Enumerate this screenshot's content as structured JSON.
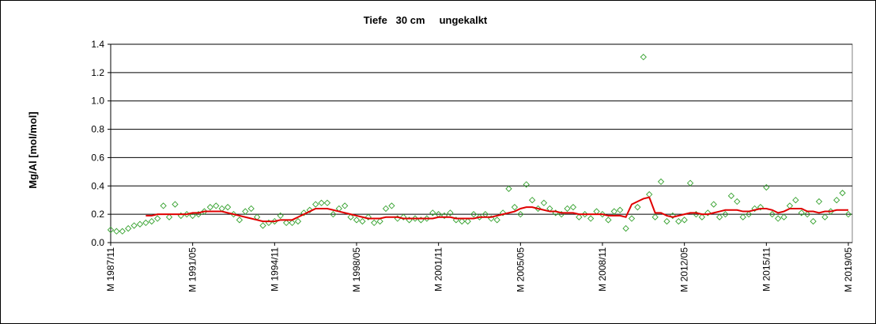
{
  "chart_data": {
    "type": "scatter",
    "title": "Tiefe   30 cm     ungekalkt",
    "y_label": "Mg/Al [mol/mol]",
    "categories": [
      "M 1987/11",
      null,
      null,
      null,
      null,
      null,
      null,
      null,
      null,
      null,
      null,
      null,
      null,
      null,
      "M 1991/05",
      null,
      null,
      null,
      null,
      null,
      null,
      null,
      null,
      null,
      null,
      null,
      null,
      null,
      "M 1994/11",
      null,
      null,
      null,
      null,
      null,
      null,
      null,
      null,
      null,
      null,
      null,
      null,
      null,
      "M 1998/05",
      null,
      null,
      null,
      null,
      null,
      null,
      null,
      null,
      null,
      null,
      null,
      null,
      null,
      "M 2001/11",
      null,
      null,
      null,
      null,
      null,
      null,
      null,
      null,
      null,
      null,
      null,
      null,
      null,
      "M 2005/05",
      null,
      null,
      null,
      null,
      null,
      null,
      null,
      null,
      null,
      null,
      null,
      null,
      null,
      "M 2008/11",
      null,
      null,
      null,
      null,
      null,
      null,
      null,
      null,
      null,
      null,
      null,
      null,
      null,
      "M 2012/05",
      null,
      null,
      null,
      null,
      null,
      null,
      null,
      null,
      null,
      null,
      null,
      null,
      null,
      "M 2015/11",
      null,
      null,
      null,
      null,
      null,
      null,
      null,
      null,
      null,
      null,
      null,
      null,
      null,
      "M 2019/05"
    ],
    "series": [
      {
        "style": "marker",
        "color": "#33a02c",
        "values": [
          0.09,
          0.08,
          0.08,
          0.1,
          0.12,
          0.13,
          0.14,
          0.15,
          0.17,
          0.26,
          0.18,
          0.27,
          0.19,
          0.2,
          0.19,
          0.2,
          0.22,
          0.25,
          0.26,
          0.24,
          0.25,
          0.2,
          0.16,
          0.22,
          0.24,
          0.18,
          0.12,
          0.14,
          0.15,
          0.19,
          0.14,
          0.14,
          0.15,
          0.21,
          0.23,
          0.27,
          0.28,
          0.28,
          0.2,
          0.24,
          0.26,
          0.18,
          0.16,
          0.15,
          0.18,
          0.14,
          0.15,
          0.24,
          0.26,
          0.17,
          0.18,
          0.16,
          0.17,
          0.16,
          0.17,
          0.21,
          0.2,
          0.19,
          0.21,
          0.16,
          0.15,
          0.15,
          0.2,
          0.18,
          0.2,
          0.17,
          0.16,
          0.21,
          0.38,
          0.25,
          0.2,
          0.41,
          0.3,
          0.24,
          0.28,
          0.24,
          0.21,
          0.2,
          0.24,
          0.25,
          0.18,
          0.2,
          0.17,
          0.22,
          0.2,
          0.16,
          0.22,
          0.23,
          0.1,
          0.17,
          0.25,
          1.31,
          0.34,
          0.18,
          0.43,
          0.15,
          0.19,
          0.15,
          0.16,
          0.42,
          0.2,
          0.18,
          0.21,
          0.27,
          0.18,
          0.2,
          0.33,
          0.29,
          0.18,
          0.2,
          0.24,
          0.25,
          0.39,
          0.2,
          0.17,
          0.18,
          0.26,
          0.3,
          0.21,
          0.2,
          0.15,
          0.29,
          0.18,
          0.22,
          0.3,
          0.35,
          0.2
        ]
      },
      {
        "style": "line",
        "color": "#e00000",
        "values": [
          null,
          null,
          null,
          null,
          null,
          null,
          0.19,
          0.19,
          0.2,
          0.2,
          0.2,
          0.2,
          0.2,
          0.2,
          0.21,
          0.21,
          0.22,
          0.22,
          0.22,
          0.22,
          0.21,
          0.2,
          0.19,
          0.18,
          0.17,
          0.16,
          0.15,
          0.15,
          0.15,
          0.16,
          0.16,
          0.16,
          0.18,
          0.2,
          0.22,
          0.24,
          0.24,
          0.24,
          0.23,
          0.22,
          0.21,
          0.2,
          0.19,
          0.18,
          0.17,
          0.17,
          0.17,
          0.18,
          0.18,
          0.18,
          0.17,
          0.17,
          0.17,
          0.17,
          0.17,
          0.17,
          0.18,
          0.18,
          0.18,
          0.17,
          0.17,
          0.17,
          0.17,
          0.18,
          0.18,
          0.18,
          0.19,
          0.2,
          0.21,
          0.22,
          0.24,
          0.25,
          0.25,
          0.24,
          0.23,
          0.22,
          0.22,
          0.21,
          0.21,
          0.21,
          0.2,
          0.2,
          0.2,
          0.2,
          0.2,
          0.19,
          0.19,
          0.19,
          0.18,
          0.27,
          0.29,
          0.31,
          0.32,
          0.21,
          0.21,
          0.19,
          0.18,
          0.19,
          0.2,
          0.21,
          0.21,
          0.2,
          0.2,
          0.21,
          0.22,
          0.23,
          0.23,
          0.23,
          0.22,
          0.22,
          0.23,
          0.24,
          0.24,
          0.23,
          0.21,
          0.22,
          0.24,
          0.24,
          0.24,
          0.22,
          0.22,
          0.21,
          0.22,
          0.22,
          0.23,
          0.23,
          0.23
        ]
      }
    ],
    "ylim": [
      0,
      1.4
    ],
    "yticks": [
      {
        "value": 0,
        "label": "0.0"
      },
      0.2,
      0.4,
      0.6,
      0.8,
      {
        "value": 1,
        "label": "1.0"
      },
      1.2,
      1.4
    ],
    "grid": true
  }
}
